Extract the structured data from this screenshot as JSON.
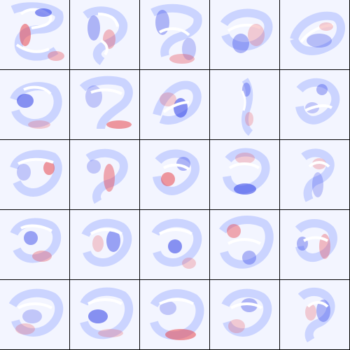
{
  "grid": {
    "rows": 5,
    "cols": 5,
    "colors": {
      "background": "#f3f5ff",
      "positive": "#e8474f",
      "negative": "#2b3ce6",
      "neutral": "#ffffff",
      "separator": "#000000"
    },
    "tiles": [
      {
        "id": 1,
        "dominant": "mixed"
      },
      {
        "id": 2,
        "dominant": "mixed"
      },
      {
        "id": 3,
        "dominant": "mixed"
      },
      {
        "id": 4,
        "dominant": "mixed"
      },
      {
        "id": 5,
        "dominant": "mixed"
      },
      {
        "id": 6,
        "dominant": "mixed"
      },
      {
        "id": 7,
        "dominant": "mixed"
      },
      {
        "id": 8,
        "dominant": "mixed"
      },
      {
        "id": 9,
        "dominant": "mixed"
      },
      {
        "id": 10,
        "dominant": "mixed"
      },
      {
        "id": 11,
        "dominant": "mixed"
      },
      {
        "id": 12,
        "dominant": "mixed"
      },
      {
        "id": 13,
        "dominant": "mixed"
      },
      {
        "id": 14,
        "dominant": "mixed"
      },
      {
        "id": 15,
        "dominant": "mixed"
      },
      {
        "id": 16,
        "dominant": "mixed"
      },
      {
        "id": 17,
        "dominant": "mixed"
      },
      {
        "id": 18,
        "dominant": "mixed"
      },
      {
        "id": 19,
        "dominant": "mixed"
      },
      {
        "id": 20,
        "dominant": "mixed"
      },
      {
        "id": 21,
        "dominant": "mixed"
      },
      {
        "id": 22,
        "dominant": "mixed"
      },
      {
        "id": 23,
        "dominant": "mixed"
      },
      {
        "id": 24,
        "dominant": "mixed"
      },
      {
        "id": 25,
        "dominant": "mixed"
      }
    ]
  }
}
